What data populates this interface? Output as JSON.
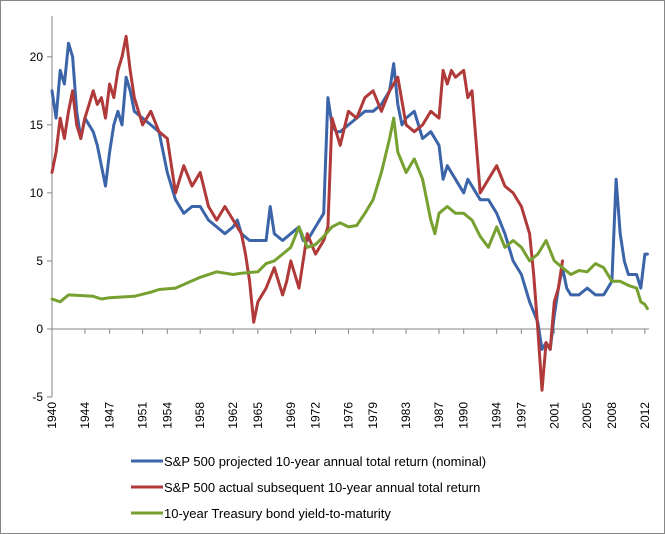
{
  "chart_data": {
    "type": "line",
    "title": "",
    "xlabel": "",
    "ylabel": "",
    "ylim": [
      -5,
      23
    ],
    "y_ticks": [
      -5,
      0,
      5,
      10,
      15,
      20
    ],
    "x_ticks": [
      1940,
      1944,
      1947,
      1951,
      1954,
      1958,
      1962,
      1965,
      1969,
      1972,
      1976,
      1979,
      1983,
      1987,
      1990,
      1994,
      1997,
      2001,
      2005,
      2008,
      2012
    ],
    "xlim": [
      1940,
      2012.5
    ],
    "grid": false,
    "legend_position": "bottom",
    "series": [
      {
        "name": "S&P 500 projected 10-year annual total return (nominal)",
        "color": "#3c64a8",
        "x": [
          1940,
          1940.5,
          1941,
          1941.5,
          1942,
          1942.5,
          1943,
          1943.5,
          1944,
          1944.5,
          1945,
          1945.5,
          1946,
          1946.5,
          1947,
          1947.5,
          1948,
          1948.5,
          1949,
          1949.5,
          1950,
          1951,
          1952,
          1953,
          1954,
          1955,
          1956,
          1957,
          1958,
          1959,
          1960,
          1961,
          1962,
          1962.5,
          1963,
          1964,
          1965,
          1966,
          1966.5,
          1967,
          1968,
          1969,
          1970,
          1970.5,
          1971,
          1972,
          1973,
          1973.5,
          1974,
          1974.5,
          1975,
          1976,
          1977,
          1978,
          1979,
          1980,
          1981,
          1981.5,
          1982,
          1982.5,
          1983,
          1984,
          1985,
          1986,
          1987,
          1987.5,
          1988,
          1989,
          1990,
          1990.5,
          1991,
          1992,
          1993,
          1994,
          1995,
          1996,
          1997,
          1998,
          1999,
          1999.5,
          2000,
          2000.5,
          2001,
          2001.5,
          2002,
          2002.5,
          2003,
          2004,
          2005,
          2006,
          2007,
          2008,
          2008.5,
          2009,
          2009.5,
          2010,
          2011,
          2011.5,
          2012,
          2012.3
        ],
        "y": [
          17.5,
          15.5,
          19,
          18,
          21,
          20,
          16,
          14,
          15.5,
          15,
          14.5,
          13.5,
          12,
          10.5,
          13,
          15,
          16,
          15,
          18.5,
          17.5,
          16,
          15.5,
          15,
          14.5,
          11.5,
          9.5,
          8.5,
          9,
          9,
          8,
          7.5,
          7,
          7.5,
          8,
          7,
          6.5,
          6.5,
          6.5,
          9,
          7,
          6.5,
          7,
          7.5,
          6.5,
          6.5,
          7.5,
          8.5,
          17,
          15,
          14.5,
          14.5,
          15,
          15.5,
          16,
          16,
          16.5,
          17.5,
          19.5,
          16.5,
          15,
          15.5,
          16,
          14,
          14.5,
          13.5,
          11,
          12,
          11,
          10,
          11,
          10.5,
          9.5,
          9.5,
          8.5,
          7,
          5,
          4,
          2,
          0.5,
          -1.5,
          -1,
          -1.5,
          1,
          3,
          4.5,
          3,
          2.5,
          2.5,
          3,
          2.5,
          2.5,
          3.5,
          11,
          7,
          5,
          4,
          4,
          3,
          5.5,
          5.5
        ]
      },
      {
        "name": "S&P 500 actual subsequent 10-year annual total return",
        "color": "#b03a3a",
        "x": [
          1940,
          1940.5,
          1941,
          1941.5,
          1942,
          1942.5,
          1943,
          1943.5,
          1944,
          1944.5,
          1945,
          1945.5,
          1946,
          1946.5,
          1947,
          1947.5,
          1948,
          1948.5,
          1949,
          1949.5,
          1950,
          1951,
          1952,
          1953,
          1954,
          1955,
          1956,
          1957,
          1958,
          1959,
          1960,
          1961,
          1962,
          1962.5,
          1963,
          1963.5,
          1964,
          1964.5,
          1965,
          1966,
          1967,
          1968,
          1968.5,
          1969,
          1970,
          1971,
          1972,
          1973,
          1973.5,
          1974,
          1975,
          1976,
          1977,
          1978,
          1979,
          1980,
          1981,
          1982,
          1983,
          1984,
          1985,
          1986,
          1987,
          1987.5,
          1988,
          1988.5,
          1989,
          1990,
          1990.5,
          1991,
          1992,
          1993,
          1994,
          1995,
          1996,
          1997,
          1998,
          1998.5,
          1999,
          1999.5,
          2000,
          2000.5,
          2001,
          2001.5,
          2002
        ],
        "y": [
          11.5,
          13,
          15.5,
          14,
          16,
          17.5,
          15,
          14,
          15.5,
          16.5,
          17.5,
          16.5,
          17,
          15.5,
          18,
          17,
          19,
          20,
          21.5,
          19,
          17,
          15,
          16,
          14.5,
          14,
          10,
          12,
          10.5,
          11.5,
          9,
          8,
          9,
          8,
          7.5,
          7,
          5.5,
          3.5,
          0.5,
          2,
          3,
          4.5,
          2.5,
          3.5,
          5,
          3,
          7,
          5.5,
          6.5,
          7.5,
          15.5,
          13.5,
          16,
          15.5,
          17,
          17.5,
          16,
          17.5,
          18.5,
          15,
          14.5,
          15,
          16,
          15.5,
          19,
          18,
          19,
          18.5,
          19,
          17,
          17.5,
          10,
          11,
          12,
          10.5,
          10,
          9,
          7,
          4,
          0,
          -4.5,
          -1,
          -1.5,
          2,
          3,
          5
        ]
      },
      {
        "name": "10-year Treasury bond yield-to-maturity",
        "color": "#76a030",
        "x": [
          1940,
          1941,
          1942,
          1945,
          1946,
          1947,
          1950,
          1952,
          1953,
          1955,
          1958,
          1960,
          1962,
          1963,
          1965,
          1966,
          1967,
          1968,
          1969,
          1970,
          1971,
          1972,
          1973,
          1974,
          1975,
          1976,
          1977,
          1978,
          1979,
          1980,
          1981,
          1981.5,
          1982,
          1983,
          1984,
          1985,
          1986,
          1986.5,
          1987,
          1988,
          1989,
          1990,
          1991,
          1992,
          1993,
          1994,
          1995,
          1996,
          1997,
          1998,
          1999,
          2000,
          2001,
          2002,
          2003,
          2004,
          2005,
          2006,
          2007,
          2008,
          2009,
          2010,
          2011,
          2011.5,
          2012,
          2012.3
        ],
        "y": [
          2.2,
          2,
          2.5,
          2.4,
          2.2,
          2.3,
          2.4,
          2.7,
          2.9,
          3,
          3.8,
          4.2,
          4,
          4.1,
          4.2,
          4.8,
          5,
          5.5,
          6,
          7.5,
          6,
          6.2,
          6.8,
          7.5,
          7.8,
          7.5,
          7.6,
          8.5,
          9.5,
          11.5,
          14,
          15.5,
          13,
          11.5,
          12.5,
          11,
          8,
          7,
          8.5,
          9,
          8.5,
          8.5,
          8,
          6.8,
          6,
          7.5,
          6,
          6.5,
          6,
          5,
          5.5,
          6.5,
          5,
          4.5,
          4,
          4.3,
          4.2,
          4.8,
          4.5,
          3.5,
          3.5,
          3.2,
          3,
          2,
          1.8,
          1.5
        ]
      }
    ]
  }
}
